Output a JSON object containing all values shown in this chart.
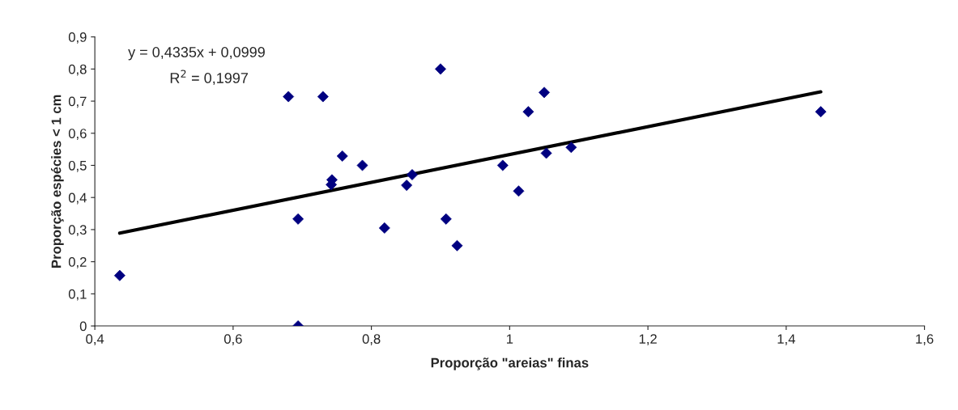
{
  "chart_data": {
    "type": "scatter",
    "xlabel": "Proporção \"areias\" finas",
    "ylabel": "Proporção espécies < 1 cm",
    "series": [
      {
        "color": "#000080",
        "marker": "diamond",
        "x": [
          0.436,
          0.68,
          0.694,
          0.694,
          0.73,
          0.742,
          0.743,
          0.758,
          0.787,
          0.819,
          0.851,
          0.859,
          0.9,
          0.908,
          0.924,
          0.99,
          1.013,
          1.027,
          1.05,
          1.053,
          1.089,
          1.45
        ],
        "values": [
          0.157,
          0.714,
          0.333,
          0.0,
          0.714,
          0.44,
          0.455,
          0.529,
          0.5,
          0.305,
          0.438,
          0.471,
          0.8,
          0.333,
          0.25,
          0.5,
          0.42,
          0.667,
          0.727,
          0.538,
          0.556,
          0.667
        ]
      },
      {
        "type": "line",
        "color": "#000000",
        "marker": "none",
        "x": [
          0.436,
          1.45
        ],
        "values": [
          0.289,
          0.729
        ]
      }
    ],
    "annotations": [
      "y = 0,4335x + 0,0999",
      "R$^{2}$ = 0,1997"
    ],
    "xlim": [
      0.4,
      1.6
    ],
    "xticks": [
      {
        "value": 0.4,
        "label": "0,4"
      },
      {
        "value": 0.6,
        "label": "0,6"
      },
      {
        "value": 0.8,
        "label": "0,8"
      },
      1,
      {
        "value": 1.2,
        "label": "1,2"
      },
      {
        "value": 1.4,
        "label": "1,4"
      },
      {
        "value": 1.6,
        "label": "1,6"
      }
    ],
    "ylim": [
      0,
      0.9
    ],
    "yticks": [
      0,
      {
        "value": 0.1,
        "label": "0,1"
      },
      {
        "value": 0.2,
        "label": "0,2"
      },
      {
        "value": 0.3,
        "label": "0,3"
      },
      {
        "value": 0.4,
        "label": "0,4"
      },
      {
        "value": 0.5,
        "label": "0,5"
      },
      {
        "value": 0.6,
        "label": "0,6"
      },
      {
        "value": 0.7,
        "label": "0,7"
      },
      {
        "value": 0.8,
        "label": "0,8"
      },
      {
        "value": 0.9,
        "label": "0,9"
      }
    ],
    "grid": false,
    "legend": false
  }
}
